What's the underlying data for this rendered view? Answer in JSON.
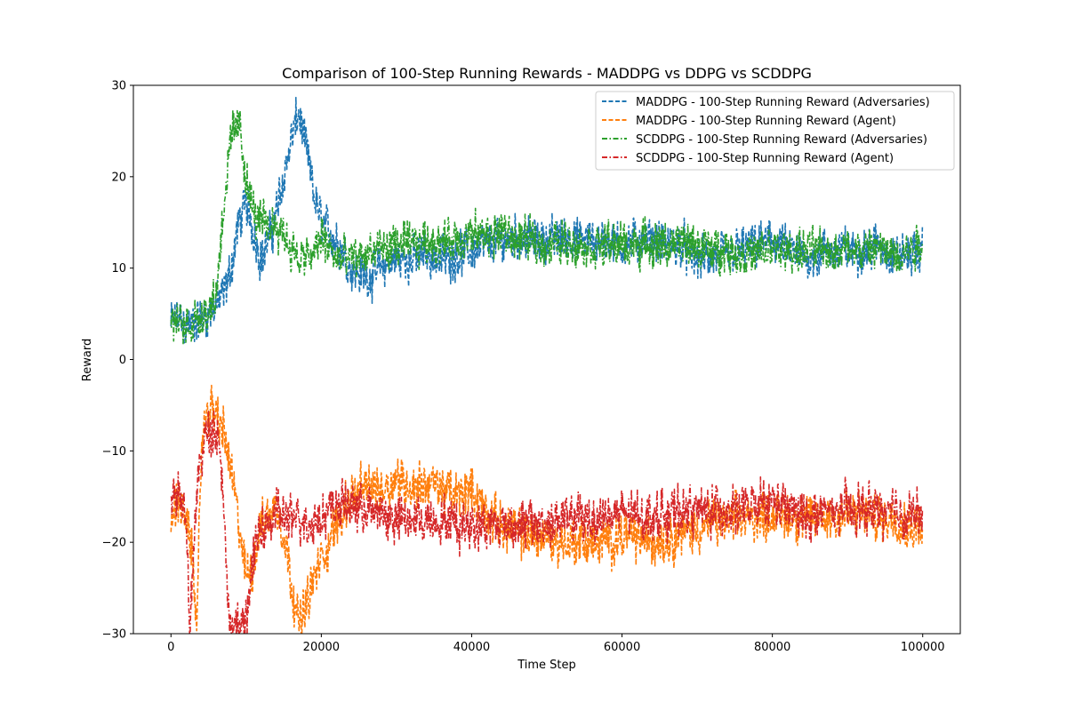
{
  "chart_data": {
    "type": "line",
    "title": "Comparison of 100-Step Running Rewards - MADDPG vs DDPG vs SCDDPG",
    "xlabel": "Time Step",
    "ylabel": "Reward",
    "xlim": [
      -5000,
      105000
    ],
    "ylim": [
      -30,
      30
    ],
    "xticks": [
      0,
      20000,
      40000,
      60000,
      80000,
      100000
    ],
    "xtick_labels": [
      "0",
      "20000",
      "40000",
      "60000",
      "80000",
      "100000"
    ],
    "yticks": [
      -30,
      -20,
      -10,
      0,
      10,
      20,
      30
    ],
    "ytick_labels": [
      "−30",
      "−20",
      "−10",
      "0",
      "10",
      "20",
      "30"
    ],
    "grid": false,
    "legend_position": "top-right",
    "series": [
      {
        "name": "MADDPG - 100-Step Running Reward (Adversaries)",
        "color": "#1f77b4",
        "dash": "dashed",
        "x": [
          0,
          1000,
          2000,
          3000,
          4000,
          5000,
          6000,
          7000,
          8000,
          9000,
          10000,
          11000,
          12000,
          13000,
          14000,
          15000,
          16000,
          17000,
          18000,
          19000,
          20000,
          22000,
          24000,
          26000,
          28000,
          30000,
          32000,
          34000,
          36000,
          38000,
          40000,
          42000,
          44000,
          46000,
          48000,
          50000,
          52000,
          54000,
          56000,
          58000,
          60000,
          62000,
          64000,
          66000,
          68000,
          70000,
          72000,
          74000,
          76000,
          78000,
          80000,
          82000,
          84000,
          86000,
          88000,
          90000,
          92000,
          94000,
          96000,
          98000,
          100000
        ],
        "y": [
          4,
          4.5,
          3.5,
          4,
          4.5,
          5,
          6,
          7,
          10,
          15,
          17,
          14,
          11,
          13,
          16,
          20,
          24,
          27,
          23,
          18,
          15,
          13,
          10,
          9,
          10,
          11,
          11,
          11.5,
          11,
          11.5,
          12,
          12.5,
          13,
          13.5,
          13,
          13,
          13.5,
          13,
          13,
          13,
          12.5,
          13,
          13,
          12.5,
          12.5,
          11,
          11,
          11.5,
          12,
          12.5,
          13,
          12,
          11,
          11.5,
          12,
          12,
          12,
          12.5,
          11.5,
          11.5,
          12
        ]
      },
      {
        "name": "MADDPG - 100-Step Running Reward (Agent)",
        "color": "#ff7f0e",
        "dash": "dashed",
        "x": [
          0,
          1000,
          2000,
          3000,
          3500,
          4000,
          5000,
          6000,
          7000,
          8000,
          9000,
          10000,
          11000,
          12000,
          13000,
          14000,
          15000,
          16000,
          17000,
          18000,
          19000,
          20000,
          22000,
          24000,
          26000,
          28000,
          30000,
          32000,
          34000,
          36000,
          38000,
          40000,
          42000,
          44000,
          46000,
          48000,
          50000,
          52000,
          54000,
          56000,
          58000,
          60000,
          62000,
          64000,
          66000,
          68000,
          70000,
          72000,
          74000,
          76000,
          78000,
          80000,
          82000,
          84000,
          86000,
          88000,
          90000,
          92000,
          94000,
          96000,
          98000,
          100000
        ],
        "y": [
          -17,
          -15,
          -18,
          -22,
          -30,
          -10,
          -5,
          -6,
          -8,
          -12,
          -18,
          -24,
          -22,
          -18,
          -17,
          -16,
          -19,
          -24,
          -29,
          -27,
          -24,
          -22,
          -18,
          -15,
          -14,
          -14,
          -13,
          -14,
          -13.5,
          -14,
          -15,
          -14,
          -17,
          -18,
          -19,
          -19,
          -19.5,
          -20,
          -20,
          -20,
          -20,
          -19,
          -19.5,
          -20,
          -19.5,
          -19,
          -18.5,
          -18,
          -17.5,
          -17.5,
          -17,
          -17,
          -17,
          -17.5,
          -17.5,
          -17,
          -17,
          -17,
          -17.5,
          -17,
          -18,
          -18
        ]
      },
      {
        "name": "SCDDPG - 100-Step Running Reward (Adversaries)",
        "color": "#2ca02c",
        "dash": "dashdot",
        "x": [
          0,
          1000,
          2000,
          3000,
          4000,
          5000,
          6000,
          7000,
          8000,
          9000,
          10000,
          11000,
          12000,
          13000,
          14000,
          15000,
          16000,
          17000,
          18000,
          19000,
          20000,
          22000,
          24000,
          26000,
          28000,
          30000,
          32000,
          34000,
          36000,
          38000,
          40000,
          42000,
          44000,
          46000,
          48000,
          50000,
          52000,
          54000,
          56000,
          58000,
          60000,
          62000,
          64000,
          66000,
          68000,
          70000,
          72000,
          74000,
          76000,
          78000,
          80000,
          82000,
          84000,
          86000,
          88000,
          90000,
          92000,
          94000,
          96000,
          98000,
          100000
        ],
        "y": [
          4,
          4,
          3.5,
          4.5,
          5,
          5.5,
          7,
          17,
          24,
          26,
          20,
          16,
          15,
          14.5,
          15,
          14,
          12,
          11,
          11,
          11.5,
          13.5,
          11,
          11,
          11.5,
          12,
          12.5,
          12.5,
          13,
          13,
          13,
          13.5,
          13.5,
          14,
          13,
          13,
          12.5,
          13,
          12.5,
          12.5,
          12.5,
          12.5,
          12.5,
          12.5,
          12.5,
          12.5,
          12.5,
          12,
          12,
          11.5,
          11.5,
          12,
          12,
          12,
          12,
          12,
          12,
          12,
          12,
          11.5,
          12,
          13
        ]
      },
      {
        "name": "SCDDPG - 100-Step Running Reward (Agent)",
        "color": "#d62728",
        "dash": "dashdot",
        "x": [
          0,
          1000,
          2000,
          2500,
          3000,
          4000,
          5000,
          6000,
          7000,
          7500,
          8000,
          9000,
          10000,
          11000,
          12000,
          13000,
          14000,
          15000,
          16000,
          17000,
          18000,
          19000,
          20000,
          22000,
          24000,
          26000,
          28000,
          30000,
          32000,
          34000,
          36000,
          38000,
          40000,
          42000,
          44000,
          46000,
          48000,
          50000,
          52000,
          54000,
          56000,
          58000,
          60000,
          62000,
          64000,
          66000,
          68000,
          70000,
          72000,
          74000,
          76000,
          78000,
          80000,
          82000,
          84000,
          86000,
          88000,
          90000,
          92000,
          94000,
          96000,
          98000,
          100000
        ],
        "y": [
          -15,
          -14,
          -17,
          -30,
          -20,
          -10,
          -8,
          -7,
          -14,
          -27,
          -29,
          -30,
          -28,
          -22,
          -18,
          -18,
          -17,
          -17,
          -18,
          -17,
          -18,
          -17.5,
          -17,
          -16,
          -16,
          -16.5,
          -17,
          -17.5,
          -17.5,
          -17.5,
          -17.5,
          -18,
          -18,
          -18,
          -18,
          -18,
          -18,
          -18,
          -17.5,
          -17.5,
          -17.5,
          -17,
          -17,
          -17,
          -17,
          -17,
          -16.5,
          -16.5,
          -16.5,
          -16.5,
          -16.5,
          -16,
          -15.5,
          -16.5,
          -17,
          -17,
          -16.5,
          -16.5,
          -16.5,
          -16.5,
          -16.5,
          -17,
          -17
        ]
      }
    ]
  }
}
